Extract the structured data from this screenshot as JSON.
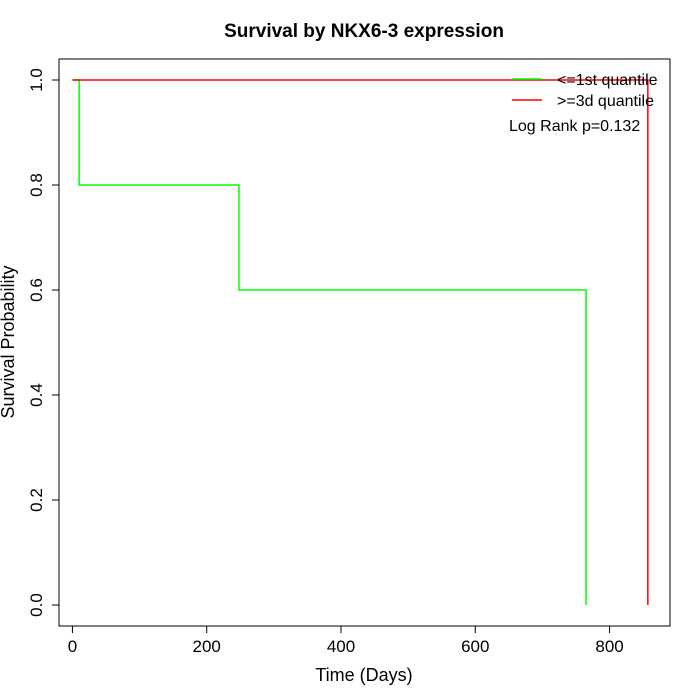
{
  "chart_data": {
    "type": "line",
    "title": "Survival by NKX6-3 expression",
    "xlabel": "Time (Days)",
    "ylabel": "Survival Probability",
    "xlim": [
      -20,
      890
    ],
    "ylim": [
      -0.04,
      1.04
    ],
    "xticks": [
      0,
      200,
      400,
      600,
      800
    ],
    "xtick_labels": [
      "0",
      "200",
      "400",
      "600",
      "800"
    ],
    "yticks": [
      0.0,
      0.2,
      0.4,
      0.6,
      0.8,
      1.0
    ],
    "ytick_labels": [
      "0.0",
      "0.2",
      "0.4",
      "0.6",
      "0.8",
      "1.0"
    ],
    "grid": false,
    "legend_position": "top-right",
    "series": [
      {
        "name": "<=1st quantile",
        "color": "#00ff00",
        "step": true,
        "x": [
          0,
          10,
          248,
          765
        ],
        "y": [
          1.0,
          0.8,
          0.6,
          0.0
        ]
      },
      {
        "name": ">=3d quantile",
        "color": "#ff0000",
        "step": true,
        "x": [
          0,
          857
        ],
        "y": [
          1.0,
          0.0
        ]
      }
    ],
    "annotations": [
      "Log Rank p=0.132"
    ]
  }
}
